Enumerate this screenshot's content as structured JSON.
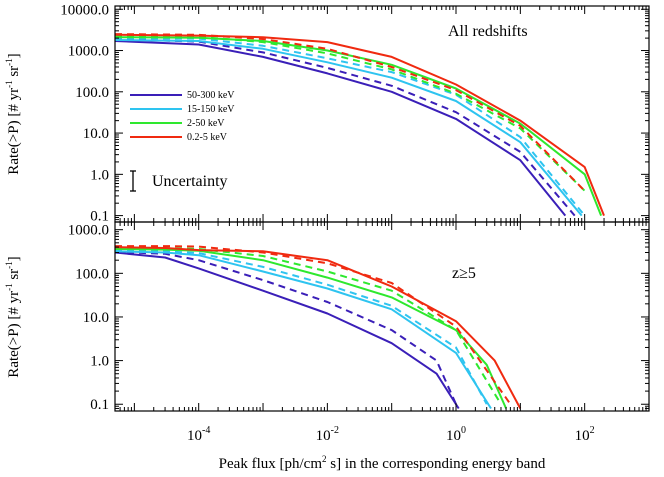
{
  "colors": {
    "50-300 keV": "#3a1fb8",
    "15-150 keV": "#2ec4f0",
    "2-50 keV": "#2ee82e",
    "0.2-5 keV": "#f02a10"
  },
  "chart_data": [
    {
      "type": "line",
      "panel": "top",
      "annotation": "All redshifts",
      "ylabel_parts": [
        "Rate(>P) [# yr",
        "-1",
        " sr",
        "-1",
        "]"
      ],
      "xlim": [
        5e-06,
        1000
      ],
      "ylim": [
        0.07,
        12000
      ],
      "xscale": "log",
      "yscale": "log",
      "yticks": [
        "10000.0",
        "1000.0",
        "100.0",
        "10.0",
        "1.0",
        "0.1"
      ],
      "legend_position": "left",
      "legend_entries": [
        "50-300 keV",
        "15-150 keV",
        "2-50 keV",
        "0.2-5 keV"
      ],
      "uncertainty_label": "Uncertainty",
      "series": [
        {
          "name": "50-300 keV",
          "style": "solid",
          "x": [
            5e-06,
            0.0001,
            0.001,
            0.01,
            0.1,
            1,
            10,
            50
          ],
          "y": [
            1700,
            1400,
            700,
            280,
            100,
            22,
            2.2,
            0.1
          ]
        },
        {
          "name": "50-300 keV",
          "style": "dashed",
          "x": [
            5e-06,
            0.0001,
            0.001,
            0.01,
            0.1,
            1,
            10,
            70
          ],
          "y": [
            1900,
            1650,
            900,
            380,
            140,
            32,
            3.5,
            0.1
          ]
        },
        {
          "name": "15-150 keV",
          "style": "solid",
          "x": [
            5e-06,
            0.0001,
            0.001,
            0.01,
            0.1,
            1,
            10,
            90
          ],
          "y": [
            1800,
            1700,
            1100,
            520,
            220,
            60,
            6,
            0.1
          ]
        },
        {
          "name": "15-150 keV",
          "style": "dashed",
          "x": [
            5e-06,
            0.0001,
            0.001,
            0.01,
            0.1,
            1,
            10,
            100
          ],
          "y": [
            2000,
            1950,
            1300,
            650,
            300,
            85,
            8,
            0.1
          ]
        },
        {
          "name": "2-50 keV",
          "style": "solid",
          "x": [
            5e-06,
            0.0001,
            0.001,
            0.01,
            0.1,
            1,
            10,
            100,
            180
          ],
          "y": [
            2100,
            2050,
            1700,
            1000,
            450,
            120,
            17,
            1,
            0.1
          ]
        },
        {
          "name": "2-50 keV",
          "style": "dashed",
          "x": [
            5e-06,
            0.0001,
            0.001,
            0.01,
            0.1,
            1,
            10,
            100
          ],
          "y": [
            2200,
            2150,
            1600,
            850,
            350,
            90,
            13,
            0.4
          ]
        },
        {
          "name": "0.2-5 keV",
          "style": "solid",
          "x": [
            5e-06,
            0.0001,
            0.001,
            0.01,
            0.1,
            1,
            10,
            100,
            200
          ],
          "y": [
            2400,
            2300,
            2100,
            1600,
            700,
            150,
            20,
            1.5,
            0.1
          ]
        },
        {
          "name": "0.2-5 keV",
          "style": "dashed",
          "x": [
            5e-06,
            0.0001,
            0.001,
            0.01,
            0.1,
            1,
            10,
            100
          ],
          "y": [
            2500,
            2400,
            1900,
            1100,
            400,
            110,
            15,
            0.4
          ]
        }
      ]
    },
    {
      "type": "line",
      "panel": "bottom",
      "annotation": "z≥5",
      "ylabel_parts": [
        "Rate(>P) [# yr",
        "-1",
        " sr",
        "-1",
        "]"
      ],
      "xlim": [
        5e-06,
        1000
      ],
      "ylim": [
        0.07,
        1500
      ],
      "xscale": "log",
      "yscale": "log",
      "yticks": [
        "1000.0",
        "100.0",
        "10.0",
        "1.0",
        "0.1"
      ],
      "xticks": [
        0.0001,
        0.01,
        1,
        100
      ],
      "xtick_labels": [
        [
          "10",
          "-4"
        ],
        [
          "10",
          "-2"
        ],
        [
          "10",
          "0"
        ],
        [
          "10",
          "2"
        ]
      ],
      "xlabel_parts": [
        "Peak flux [ph/cm",
        "2",
        " s] in the corresponding energy band"
      ],
      "series": [
        {
          "name": "50-300 keV",
          "style": "solid",
          "x": [
            5e-06,
            3e-05,
            0.0001,
            0.001,
            0.01,
            0.1,
            0.5,
            1.1
          ],
          "y": [
            300,
            230,
            130,
            40,
            12,
            2.5,
            0.5,
            0.08
          ]
        },
        {
          "name": "50-300 keV",
          "style": "dashed",
          "x": [
            5e-06,
            3e-05,
            0.0001,
            0.001,
            0.01,
            0.1,
            0.5,
            1
          ],
          "y": [
            310,
            280,
            200,
            70,
            22,
            5,
            1,
            0.1
          ]
        },
        {
          "name": "15-150 keV",
          "style": "solid",
          "x": [
            5e-06,
            3e-05,
            0.0001,
            0.001,
            0.01,
            0.1,
            1,
            3.5
          ],
          "y": [
            320,
            300,
            260,
            110,
            45,
            15,
            1.5,
            0.08
          ]
        },
        {
          "name": "15-150 keV",
          "style": "dashed",
          "x": [
            5e-06,
            3e-05,
            0.0001,
            0.001,
            0.01,
            0.1,
            1,
            3
          ],
          "y": [
            330,
            320,
            290,
            140,
            55,
            18,
            2,
            0.1
          ]
        },
        {
          "name": "2-50 keV",
          "style": "solid",
          "x": [
            5e-06,
            3e-05,
            0.0001,
            0.001,
            0.01,
            0.1,
            1,
            3,
            6
          ],
          "y": [
            360,
            350,
            330,
            200,
            80,
            28,
            5,
            0.8,
            0.08
          ]
        },
        {
          "name": "2-50 keV",
          "style": "dashed",
          "x": [
            5e-06,
            3e-05,
            0.0001,
            0.001,
            0.01,
            0.1,
            1,
            5
          ],
          "y": [
            390,
            380,
            360,
            250,
            110,
            40,
            5,
            0.1
          ]
        },
        {
          "name": "0.2-5 keV",
          "style": "solid",
          "x": [
            5e-06,
            3e-05,
            0.0001,
            0.001,
            0.01,
            0.1,
            1,
            4,
            10
          ],
          "y": [
            400,
            380,
            340,
            320,
            200,
            50,
            8,
            1,
            0.08
          ]
        },
        {
          "name": "0.2-5 keV",
          "style": "dashed",
          "x": [
            5e-06,
            3e-05,
            0.0001,
            0.001,
            0.01,
            0.1,
            1,
            7
          ],
          "y": [
            420,
            420,
            410,
            300,
            170,
            60,
            6,
            0.1
          ]
        }
      ]
    }
  ]
}
